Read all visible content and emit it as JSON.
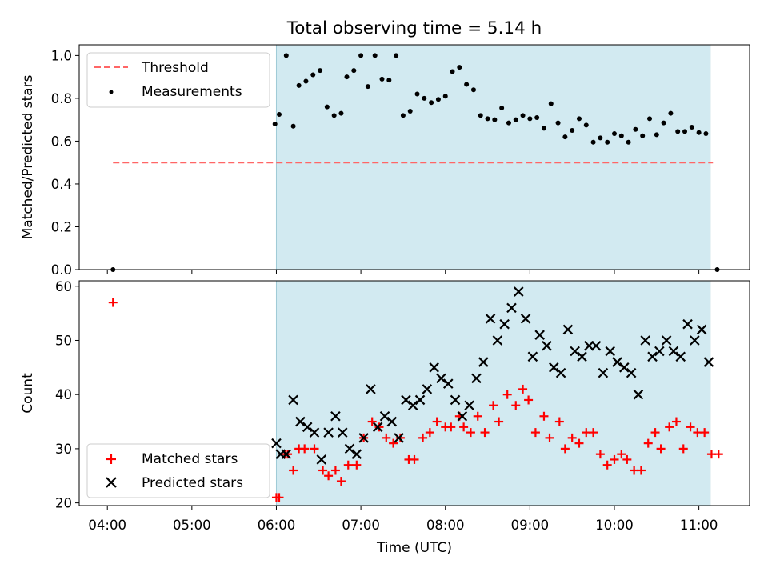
{
  "title": "Total observing time = 5.14 h",
  "xlabel": "Time (UTC)",
  "colors": {
    "shade": "#add8e6",
    "threshold": "#ff6666",
    "matched": "#ff0000",
    "predicted": "#000000",
    "measure": "#000000"
  },
  "chart_data": [
    {
      "type": "scatter",
      "panel": "top",
      "ylabel": "Matched/Predicted stars",
      "ylim": [
        0,
        1.05
      ],
      "yticks": [
        0.0,
        0.2,
        0.4,
        0.6,
        0.8,
        1.0
      ],
      "ytick_labels": [
        "0.0",
        "0.2",
        "0.4",
        "0.6",
        "0.8",
        "1.0"
      ],
      "xlim": [
        "03:40",
        "11:36"
      ],
      "observing_window": [
        "06:00",
        "11:08"
      ],
      "threshold": {
        "name": "Threshold",
        "value": 0.5,
        "x_range": [
          "04:04",
          "11:10"
        ]
      },
      "legend": [
        "Threshold",
        "Measurements"
      ],
      "legend_position": "upper left",
      "series": [
        {
          "name": "Measurements",
          "points": [
            [
              "04:04",
              0.0
            ],
            [
              "05:59",
              0.68
            ],
            [
              "06:02",
              0.725
            ],
            [
              "06:07",
              1.0
            ],
            [
              "06:12",
              0.67
            ],
            [
              "06:16",
              0.86
            ],
            [
              "06:21",
              0.88
            ],
            [
              "06:26",
              0.91
            ],
            [
              "06:31",
              0.93
            ],
            [
              "06:36",
              0.76
            ],
            [
              "06:41",
              0.72
            ],
            [
              "06:46",
              0.73
            ],
            [
              "06:50",
              0.9
            ],
            [
              "06:55",
              0.93
            ],
            [
              "07:00",
              1.0
            ],
            [
              "07:05",
              0.855
            ],
            [
              "07:10",
              1.0
            ],
            [
              "07:15",
              0.89
            ],
            [
              "07:20",
              0.885
            ],
            [
              "07:25",
              1.0
            ],
            [
              "07:30",
              0.72
            ],
            [
              "07:35",
              0.74
            ],
            [
              "07:40",
              0.82
            ],
            [
              "07:45",
              0.8
            ],
            [
              "07:50",
              0.78
            ],
            [
              "07:55",
              0.795
            ],
            [
              "08:00",
              0.81
            ],
            [
              "08:05",
              0.925
            ],
            [
              "08:10",
              0.945
            ],
            [
              "08:15",
              0.865
            ],
            [
              "08:20",
              0.84
            ],
            [
              "08:25",
              0.72
            ],
            [
              "08:30",
              0.705
            ],
            [
              "08:35",
              0.7
            ],
            [
              "08:40",
              0.755
            ],
            [
              "08:45",
              0.685
            ],
            [
              "08:50",
              0.7
            ],
            [
              "08:55",
              0.72
            ],
            [
              "09:00",
              0.705
            ],
            [
              "09:05",
              0.71
            ],
            [
              "09:10",
              0.66
            ],
            [
              "09:15",
              0.775
            ],
            [
              "09:20",
              0.685
            ],
            [
              "09:25",
              0.62
            ],
            [
              "09:30",
              0.65
            ],
            [
              "09:35",
              0.705
            ],
            [
              "09:40",
              0.675
            ],
            [
              "09:45",
              0.595
            ],
            [
              "09:50",
              0.615
            ],
            [
              "09:55",
              0.595
            ],
            [
              "10:00",
              0.635
            ],
            [
              "10:05",
              0.625
            ],
            [
              "10:10",
              0.595
            ],
            [
              "10:15",
              0.655
            ],
            [
              "10:20",
              0.625
            ],
            [
              "10:25",
              0.705
            ],
            [
              "10:30",
              0.63
            ],
            [
              "10:35",
              0.685
            ],
            [
              "10:40",
              0.73
            ],
            [
              "10:45",
              0.645
            ],
            [
              "10:50",
              0.645
            ],
            [
              "10:55",
              0.665
            ],
            [
              "11:00",
              0.64
            ],
            [
              "11:05",
              0.635
            ],
            [
              "11:13",
              0.0
            ]
          ]
        }
      ]
    },
    {
      "type": "scatter",
      "panel": "bottom",
      "ylabel": "Count",
      "ylim": [
        19.5,
        61
      ],
      "yticks": [
        20,
        30,
        40,
        50,
        60
      ],
      "ytick_labels": [
        "20",
        "30",
        "40",
        "50",
        "60"
      ],
      "xlim": [
        "03:40",
        "11:36"
      ],
      "xticks": [
        "04:00",
        "05:00",
        "06:00",
        "07:00",
        "08:00",
        "09:00",
        "10:00",
        "11:00"
      ],
      "xtick_labels": [
        "04:00",
        "05:00",
        "06:00",
        "07:00",
        "08:00",
        "09:00",
        "10:00",
        "11:00"
      ],
      "observing_window": [
        "06:00",
        "11:08"
      ],
      "legend": [
        "Matched stars",
        "Predicted stars"
      ],
      "legend_position": "lower left",
      "series": [
        {
          "name": "Matched stars",
          "marker": "+",
          "points": [
            [
              "04:04",
              57
            ],
            [
              "06:00",
              21
            ],
            [
              "06:02",
              21
            ],
            [
              "06:06",
              29
            ],
            [
              "06:08",
              29
            ],
            [
              "06:12",
              26
            ],
            [
              "06:16",
              30
            ],
            [
              "06:20",
              30
            ],
            [
              "06:27",
              30
            ],
            [
              "06:33",
              26
            ],
            [
              "06:37",
              25
            ],
            [
              "06:42",
              26
            ],
            [
              "06:46",
              24
            ],
            [
              "06:51",
              27
            ],
            [
              "06:57",
              27
            ],
            [
              "07:02",
              32
            ],
            [
              "07:08",
              35
            ],
            [
              "07:13",
              34
            ],
            [
              "07:18",
              32
            ],
            [
              "07:23",
              31
            ],
            [
              "07:28",
              32
            ],
            [
              "07:34",
              28
            ],
            [
              "07:38",
              28
            ],
            [
              "07:44",
              32
            ],
            [
              "07:49",
              33
            ],
            [
              "07:54",
              35
            ],
            [
              "08:00",
              34
            ],
            [
              "08:04",
              34
            ],
            [
              "08:10",
              36
            ],
            [
              "08:13",
              34
            ],
            [
              "08:18",
              33
            ],
            [
              "08:23",
              36
            ],
            [
              "08:28",
              33
            ],
            [
              "08:34",
              38
            ],
            [
              "08:38",
              35
            ],
            [
              "08:44",
              40
            ],
            [
              "08:50",
              38
            ],
            [
              "08:55",
              41
            ],
            [
              "08:59",
              39
            ],
            [
              "09:04",
              33
            ],
            [
              "09:10",
              36
            ],
            [
              "09:14",
              32
            ],
            [
              "09:21",
              35
            ],
            [
              "09:25",
              30
            ],
            [
              "09:30",
              32
            ],
            [
              "09:35",
              31
            ],
            [
              "09:40",
              33
            ],
            [
              "09:45",
              33
            ],
            [
              "09:50",
              29
            ],
            [
              "09:55",
              27
            ],
            [
              "10:00",
              28
            ],
            [
              "10:05",
              29
            ],
            [
              "10:09",
              28
            ],
            [
              "10:14",
              26
            ],
            [
              "10:19",
              26
            ],
            [
              "10:24",
              31
            ],
            [
              "10:29",
              33
            ],
            [
              "10:33",
              30
            ],
            [
              "10:39",
              34
            ],
            [
              "10:44",
              35
            ],
            [
              "10:49",
              30
            ],
            [
              "10:54",
              34
            ],
            [
              "10:59",
              33
            ],
            [
              "11:04",
              33
            ],
            [
              "11:09",
              29
            ],
            [
              "11:14",
              29
            ]
          ]
        },
        {
          "name": "Predicted stars",
          "marker": "x",
          "points": [
            [
              "06:00",
              31
            ],
            [
              "06:03",
              29
            ],
            [
              "06:07",
              29
            ],
            [
              "06:12",
              39
            ],
            [
              "06:17",
              35
            ],
            [
              "06:22",
              34
            ],
            [
              "06:27",
              33
            ],
            [
              "06:32",
              28
            ],
            [
              "06:37",
              33
            ],
            [
              "06:42",
              36
            ],
            [
              "06:47",
              33
            ],
            [
              "06:52",
              30
            ],
            [
              "06:57",
              29
            ],
            [
              "07:02",
              32
            ],
            [
              "07:07",
              41
            ],
            [
              "07:12",
              34
            ],
            [
              "07:17",
              36
            ],
            [
              "07:22",
              35
            ],
            [
              "07:27",
              32
            ],
            [
              "07:32",
              39
            ],
            [
              "07:37",
              38
            ],
            [
              "07:42",
              39
            ],
            [
              "07:47",
              41
            ],
            [
              "07:52",
              45
            ],
            [
              "07:57",
              43
            ],
            [
              "08:02",
              42
            ],
            [
              "08:07",
              39
            ],
            [
              "08:12",
              36
            ],
            [
              "08:17",
              38
            ],
            [
              "08:22",
              43
            ],
            [
              "08:27",
              46
            ],
            [
              "08:32",
              54
            ],
            [
              "08:37",
              50
            ],
            [
              "08:42",
              53
            ],
            [
              "08:47",
              56
            ],
            [
              "08:52",
              59
            ],
            [
              "08:57",
              54
            ],
            [
              "09:02",
              47
            ],
            [
              "09:07",
              51
            ],
            [
              "09:12",
              49
            ],
            [
              "09:17",
              45
            ],
            [
              "09:22",
              44
            ],
            [
              "09:27",
              52
            ],
            [
              "09:32",
              48
            ],
            [
              "09:37",
              47
            ],
            [
              "09:42",
              49
            ],
            [
              "09:47",
              49
            ],
            [
              "09:52",
              44
            ],
            [
              "09:57",
              48
            ],
            [
              "10:02",
              46
            ],
            [
              "10:07",
              45
            ],
            [
              "10:12",
              44
            ],
            [
              "10:17",
              40
            ],
            [
              "10:22",
              50
            ],
            [
              "10:27",
              47
            ],
            [
              "10:32",
              48
            ],
            [
              "10:37",
              50
            ],
            [
              "10:42",
              48
            ],
            [
              "10:47",
              47
            ],
            [
              "10:52",
              53
            ],
            [
              "10:57",
              50
            ],
            [
              "11:02",
              52
            ],
            [
              "11:07",
              46
            ]
          ]
        }
      ]
    }
  ]
}
